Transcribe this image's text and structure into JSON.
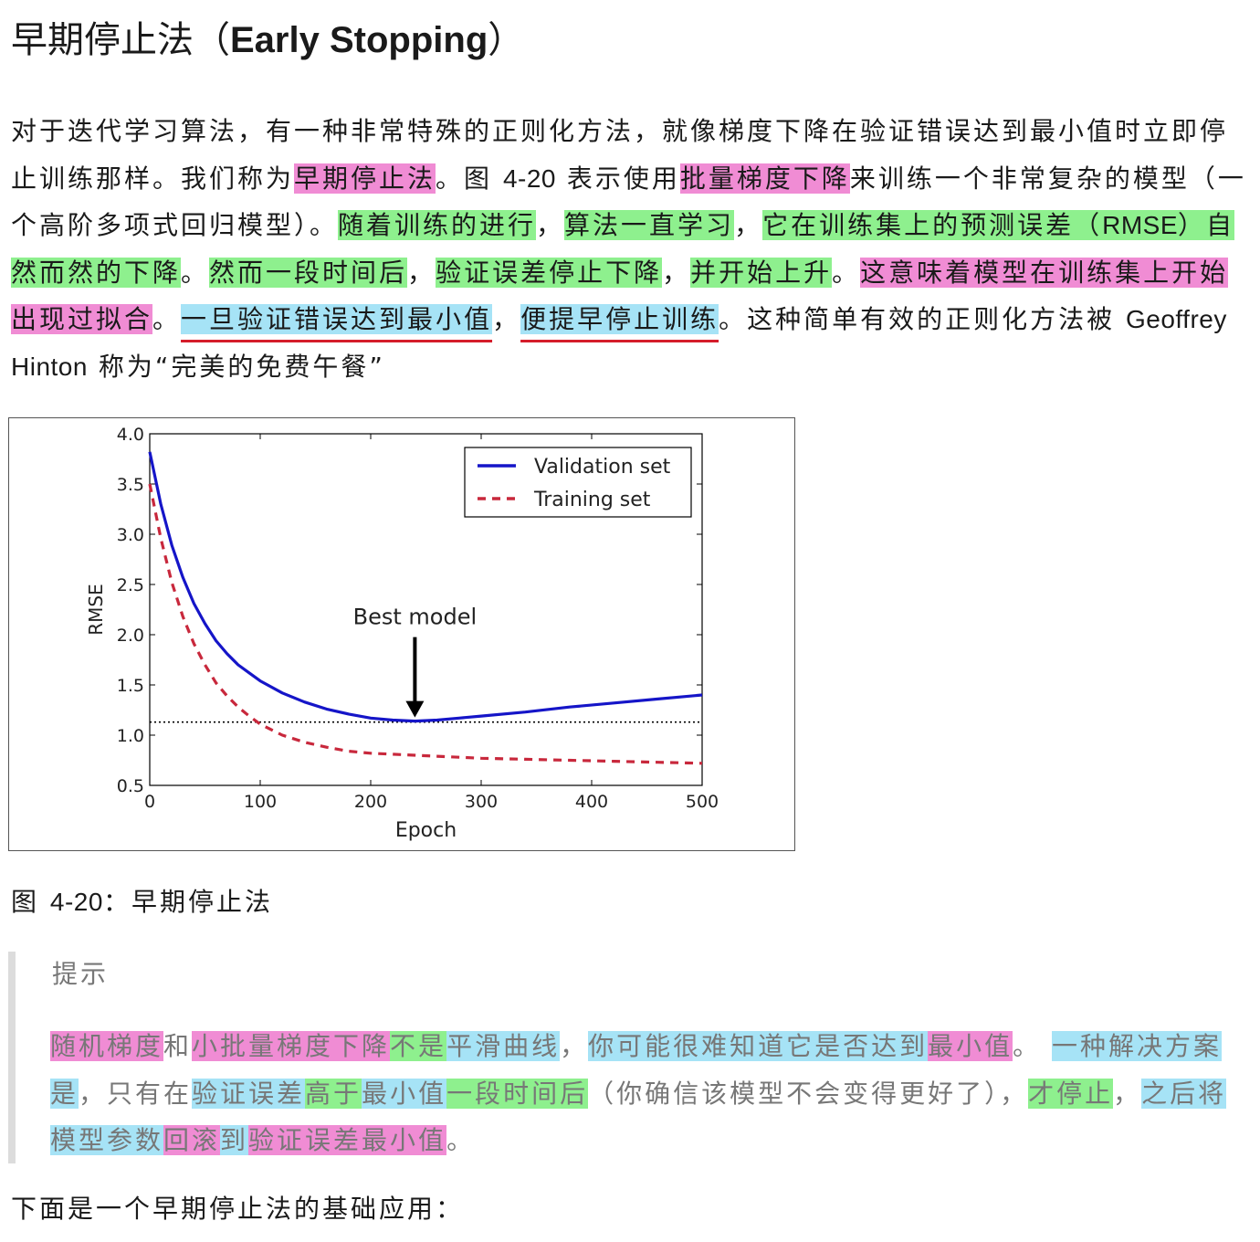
{
  "heading": {
    "title_cn": "早期停止法（",
    "title_en": "Early Stopping",
    "title_end": "）"
  },
  "paragraph": {
    "s1": "对于迭代学习算法，有一种非常特殊的正则化方法，就像梯度下降在验证错误达到最小值时立即停止训练那样。我们称为",
    "s2": "早期停止法",
    "s3": "。图 ",
    "s4": "4-20",
    "s5": " 表示使用",
    "s6": "批量梯度下降",
    "s7": "来训练一个非常复杂的模型（一个高阶多项式回归模型）。",
    "s8": "随着训练的进行",
    "s9": "，",
    "s10": "算法一直学习",
    "s11": "，",
    "s12": "它在训练集上的预测误差（",
    "s13": "RMSE",
    "s14": "）自然而然的下降",
    "s15": "。",
    "s16": "然而一段时间后",
    "s17": "，",
    "s18": "验证误差停止下降",
    "s19": "，",
    "s20": "并开始上升",
    "s21": "。",
    "s22": "这意味着模型在训练集上开始出现过拟合",
    "s23": "。",
    "s24": "一旦验证错误达到最小值",
    "s25": "，",
    "s26": "便提早停止训练",
    "s27": "。这种简单有效的正则化方法被 ",
    "s28": "Geoffrey Hinton",
    "s29": " 称为“完美的免费午餐”"
  },
  "colors": {
    "highlight_pink": "#f08cd4",
    "highlight_green": "#8ef08e",
    "highlight_blue": "#a6e3f6",
    "underline_red": "#d51d2b",
    "validation_line": "#1515c8",
    "training_line": "#c8283c"
  },
  "chart_data": {
    "type": "line",
    "xlabel": "Epoch",
    "ylabel": "RMSE",
    "xlim": [
      0,
      500
    ],
    "ylim": [
      0.5,
      4.0
    ],
    "xticks": [
      "0",
      "100",
      "200",
      "300",
      "400",
      "500"
    ],
    "yticks": [
      "0.5",
      "1.0",
      "1.5",
      "2.0",
      "2.5",
      "3.0",
      "3.5",
      "4.0"
    ],
    "grid": false,
    "legend_position": "top-right",
    "series": [
      {
        "name": "Validation set",
        "style": "solid",
        "x": [
          0,
          10,
          20,
          30,
          40,
          50,
          60,
          70,
          80,
          90,
          100,
          120,
          140,
          160,
          180,
          200,
          220,
          240,
          260,
          280,
          300,
          340,
          380,
          420,
          460,
          500
        ],
        "values": [
          3.82,
          3.3,
          2.89,
          2.57,
          2.31,
          2.11,
          1.94,
          1.81,
          1.7,
          1.62,
          1.54,
          1.42,
          1.33,
          1.26,
          1.21,
          1.17,
          1.15,
          1.14,
          1.15,
          1.17,
          1.19,
          1.23,
          1.28,
          1.32,
          1.36,
          1.4
        ]
      },
      {
        "name": "Training set",
        "style": "dashed",
        "x": [
          0,
          10,
          20,
          30,
          40,
          50,
          60,
          70,
          80,
          90,
          100,
          120,
          140,
          160,
          180,
          200,
          220,
          240,
          260,
          280,
          300,
          340,
          380,
          420,
          460,
          500
        ],
        "values": [
          3.5,
          2.96,
          2.52,
          2.18,
          1.91,
          1.7,
          1.52,
          1.39,
          1.28,
          1.19,
          1.11,
          1.0,
          0.93,
          0.88,
          0.84,
          0.82,
          0.81,
          0.8,
          0.79,
          0.78,
          0.77,
          0.76,
          0.75,
          0.74,
          0.73,
          0.72
        ]
      }
    ],
    "reference_line": {
      "y": 1.13,
      "style": "dotted"
    },
    "annotations": [
      {
        "text": "Best model",
        "arrow_x": 240,
        "arrow_y": 1.14
      }
    ]
  },
  "caption": {
    "prefix": "图 ",
    "number": "4-20",
    "suffix": "：早期停止法"
  },
  "tip": {
    "title": "提示",
    "t1": "随机梯度",
    "t2": "和",
    "t3": "小批量梯度下降",
    "t4": "不是",
    "t5": "平滑曲线",
    "t6": "，",
    "t7": "你可能很难知道它是否达到",
    "t8": "最小值",
    "t9": "。",
    "t10": "一种解决方案是",
    "t11": "，只有在",
    "t12": "验证误差",
    "t13": "高于",
    "t14": "最小值",
    "t15": "一段时间后",
    "t16": "（你确信该模型不会变得更好了），",
    "t17": "才停止",
    "t18": "，",
    "t19": "之后将模型参数",
    "t20": "回滚",
    "t21": "到",
    "t22": "验证误差最小值",
    "t23": "。"
  },
  "footer": {
    "text": "下面是一个早期停止法的基础应用："
  }
}
